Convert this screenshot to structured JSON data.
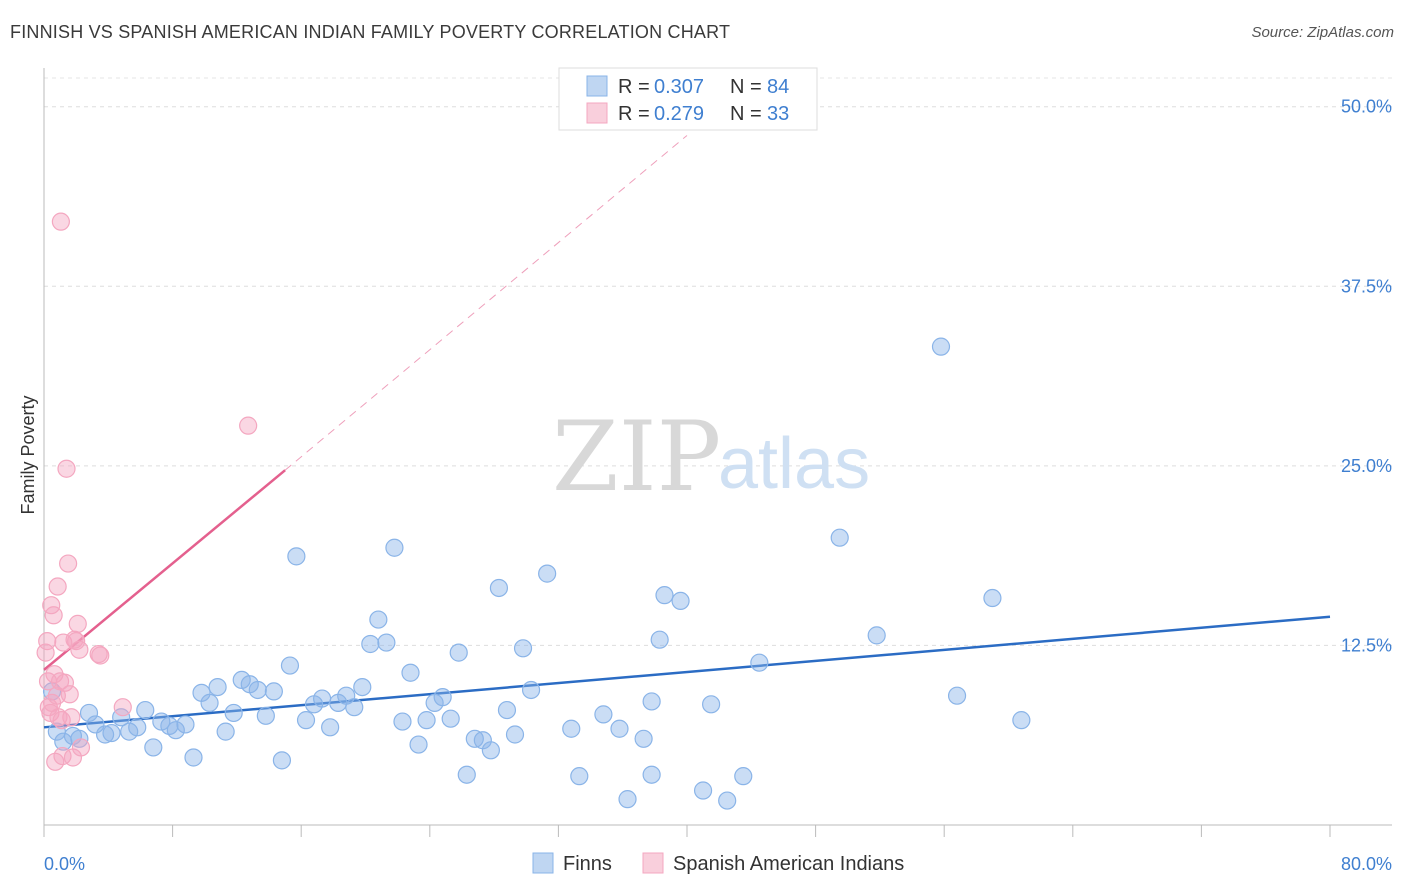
{
  "title": "FINNISH VS SPANISH AMERICAN INDIAN FAMILY POVERTY CORRELATION CHART",
  "source": "Source: ZipAtlas.com",
  "chart_data": {
    "type": "scatter",
    "ylabel": "Family Poverty",
    "xlim": [
      0,
      80
    ],
    "ylim": [
      0,
      52
    ],
    "y_ticks": [
      {
        "value": 12.5,
        "label": "12.5%"
      },
      {
        "value": 25.0,
        "label": "25.0%"
      },
      {
        "value": 37.5,
        "label": "37.5%"
      },
      {
        "value": 50.0,
        "label": "50.0%"
      }
    ],
    "x_tick_labels": [
      {
        "value": 0,
        "label": "0.0%"
      },
      {
        "value": 80,
        "label": "80.0%"
      }
    ],
    "x_minor_ticks": [
      0,
      8,
      16,
      24,
      32,
      40,
      48,
      56,
      64,
      72,
      80
    ],
    "grid": "horizontal-dashed",
    "legend_placement": "top-center",
    "bottom_legend_placement": "bottom-center",
    "series": [
      {
        "name": "Finns",
        "color": "#8ab4e8",
        "line_color": "#2b6cc4",
        "R": "0.307",
        "N": "84",
        "trend": {
          "x0": 0,
          "y0": 6.8,
          "x1": 80,
          "y1": 14.5
        },
        "points": [
          [
            0.5,
            9.3
          ],
          [
            0.8,
            6.5
          ],
          [
            1.2,
            5.8
          ],
          [
            1.8,
            6.2
          ],
          [
            2.2,
            6.0
          ],
          [
            2.8,
            7.8
          ],
          [
            3.2,
            7.0
          ],
          [
            3.8,
            6.3
          ],
          [
            4.2,
            6.4
          ],
          [
            4.8,
            7.5
          ],
          [
            5.3,
            6.5
          ],
          [
            5.8,
            6.8
          ],
          [
            6.3,
            8.0
          ],
          [
            6.8,
            5.4
          ],
          [
            7.3,
            7.2
          ],
          [
            7.8,
            6.9
          ],
          [
            8.2,
            6.6
          ],
          [
            8.8,
            7.0
          ],
          [
            9.3,
            4.7
          ],
          [
            9.8,
            9.2
          ],
          [
            10.3,
            8.5
          ],
          [
            10.8,
            9.6
          ],
          [
            11.3,
            6.5
          ],
          [
            11.8,
            7.8
          ],
          [
            12.3,
            10.1
          ],
          [
            12.8,
            9.8
          ],
          [
            13.3,
            9.4
          ],
          [
            13.8,
            7.6
          ],
          [
            14.3,
            9.3
          ],
          [
            14.8,
            4.5
          ],
          [
            15.3,
            11.1
          ],
          [
            15.7,
            18.7
          ],
          [
            16.3,
            7.3
          ],
          [
            16.8,
            8.4
          ],
          [
            17.3,
            8.8
          ],
          [
            17.8,
            6.8
          ],
          [
            18.3,
            8.5
          ],
          [
            18.8,
            9.0
          ],
          [
            19.3,
            8.2
          ],
          [
            19.8,
            9.6
          ],
          [
            20.3,
            12.6
          ],
          [
            20.8,
            14.3
          ],
          [
            21.3,
            12.7
          ],
          [
            21.8,
            19.3
          ],
          [
            22.3,
            7.2
          ],
          [
            22.8,
            10.6
          ],
          [
            23.3,
            5.6
          ],
          [
            23.8,
            7.3
          ],
          [
            24.3,
            8.5
          ],
          [
            24.8,
            8.9
          ],
          [
            25.3,
            7.4
          ],
          [
            25.8,
            12.0
          ],
          [
            26.3,
            3.5
          ],
          [
            26.8,
            6.0
          ],
          [
            27.3,
            5.9
          ],
          [
            27.8,
            5.2
          ],
          [
            28.3,
            16.5
          ],
          [
            28.8,
            8.0
          ],
          [
            29.3,
            6.3
          ],
          [
            29.8,
            12.3
          ],
          [
            30.3,
            9.4
          ],
          [
            31.3,
            17.5
          ],
          [
            32.8,
            6.7
          ],
          [
            33.3,
            3.4
          ],
          [
            34.8,
            7.7
          ],
          [
            35.8,
            6.7
          ],
          [
            36.3,
            1.8
          ],
          [
            37.3,
            6.0
          ],
          [
            37.8,
            3.5
          ],
          [
            37.8,
            8.6
          ],
          [
            38.3,
            12.9
          ],
          [
            38.6,
            16.0
          ],
          [
            39.6,
            15.6
          ],
          [
            41.0,
            2.4
          ],
          [
            41.5,
            8.4
          ],
          [
            42.5,
            1.7
          ],
          [
            43.5,
            3.4
          ],
          [
            44.5,
            11.3
          ],
          [
            49.5,
            20.0
          ],
          [
            51.8,
            13.2
          ],
          [
            55.8,
            33.3
          ],
          [
            56.8,
            9.0
          ],
          [
            59.0,
            15.8
          ],
          [
            60.8,
            7.3
          ]
        ]
      },
      {
        "name": "Spanish American Indians",
        "color": "#f4a7c0",
        "line_color": "#e4608e",
        "R": "0.279",
        "N": "33",
        "trend": {
          "x0": 0,
          "y0": 10.8,
          "x1": 15.0,
          "y1": 24.7
        },
        "trend_dashed": {
          "x0": 15.0,
          "y0": 24.7,
          "x1": 40,
          "y1": 48.0
        },
        "points": [
          [
            0.1,
            12.0
          ],
          [
            0.2,
            12.8
          ],
          [
            0.25,
            10.0
          ],
          [
            0.3,
            8.2
          ],
          [
            0.4,
            7.8
          ],
          [
            0.45,
            15.3
          ],
          [
            0.5,
            8.5
          ],
          [
            0.6,
            14.6
          ],
          [
            0.65,
            10.5
          ],
          [
            0.7,
            4.4
          ],
          [
            0.8,
            9.0
          ],
          [
            0.85,
            16.6
          ],
          [
            0.9,
            7.5
          ],
          [
            1.0,
            10.0
          ],
          [
            1.05,
            42.0
          ],
          [
            1.1,
            7.3
          ],
          [
            1.15,
            4.8
          ],
          [
            1.2,
            12.7
          ],
          [
            1.3,
            9.9
          ],
          [
            1.4,
            24.8
          ],
          [
            1.5,
            18.2
          ],
          [
            1.6,
            9.1
          ],
          [
            1.7,
            7.5
          ],
          [
            1.8,
            4.7
          ],
          [
            1.9,
            12.9
          ],
          [
            2.0,
            12.8
          ],
          [
            2.1,
            14.0
          ],
          [
            2.2,
            12.2
          ],
          [
            2.3,
            5.4
          ],
          [
            3.4,
            11.9
          ],
          [
            3.5,
            11.8
          ],
          [
            4.9,
            8.2
          ],
          [
            12.7,
            27.8
          ]
        ]
      }
    ]
  }
}
